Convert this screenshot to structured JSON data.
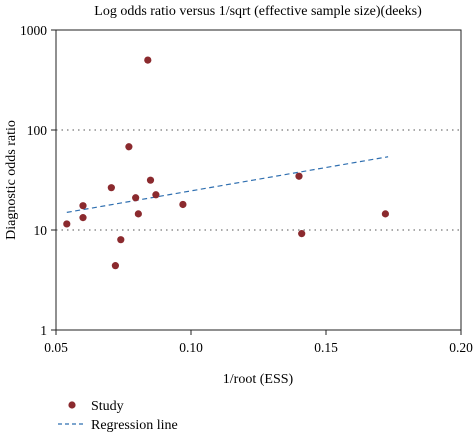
{
  "chart_data": {
    "type": "scatter",
    "title": "Log odds ratio versus 1/sqrt (effective sample size)(deeks)",
    "xlabel": "1/root (ESS)",
    "ylabel": "Diagnostic odds ratio",
    "xlim": [
      0.05,
      0.2
    ],
    "ylim": [
      1,
      1000
    ],
    "y_scale": "log",
    "x_ticks": [
      0.05,
      0.1,
      0.15,
      0.2
    ],
    "x_tick_labels": [
      "0.05",
      "0.10",
      "0.15",
      "0.20"
    ],
    "y_ticks": [
      1,
      10,
      100,
      1000
    ],
    "y_tick_labels": [
      "1",
      "10",
      "100",
      "1000"
    ],
    "reference_lines_y": [
      10,
      100
    ],
    "legend_position": "bottom-left",
    "colors": {
      "point": "#8b2a2e",
      "regression": "#2f6fb0",
      "reference": "#555555"
    },
    "series": [
      {
        "name": "Study",
        "kind": "points",
        "x": [
          0.054,
          0.06,
          0.06,
          0.0705,
          0.072,
          0.074,
          0.077,
          0.0795,
          0.0805,
          0.084,
          0.085,
          0.087,
          0.097,
          0.14,
          0.141,
          0.172
        ],
        "y": [
          11.5,
          17.5,
          13.3,
          26.5,
          4.4,
          8.0,
          68,
          21.0,
          14.5,
          500,
          31.5,
          22.5,
          18.0,
          34.5,
          9.2,
          14.5
        ]
      },
      {
        "name": "Regression line",
        "kind": "dashed-line",
        "x": [
          0.054,
          0.173
        ],
        "y": [
          15.0,
          54.0
        ]
      }
    ]
  }
}
